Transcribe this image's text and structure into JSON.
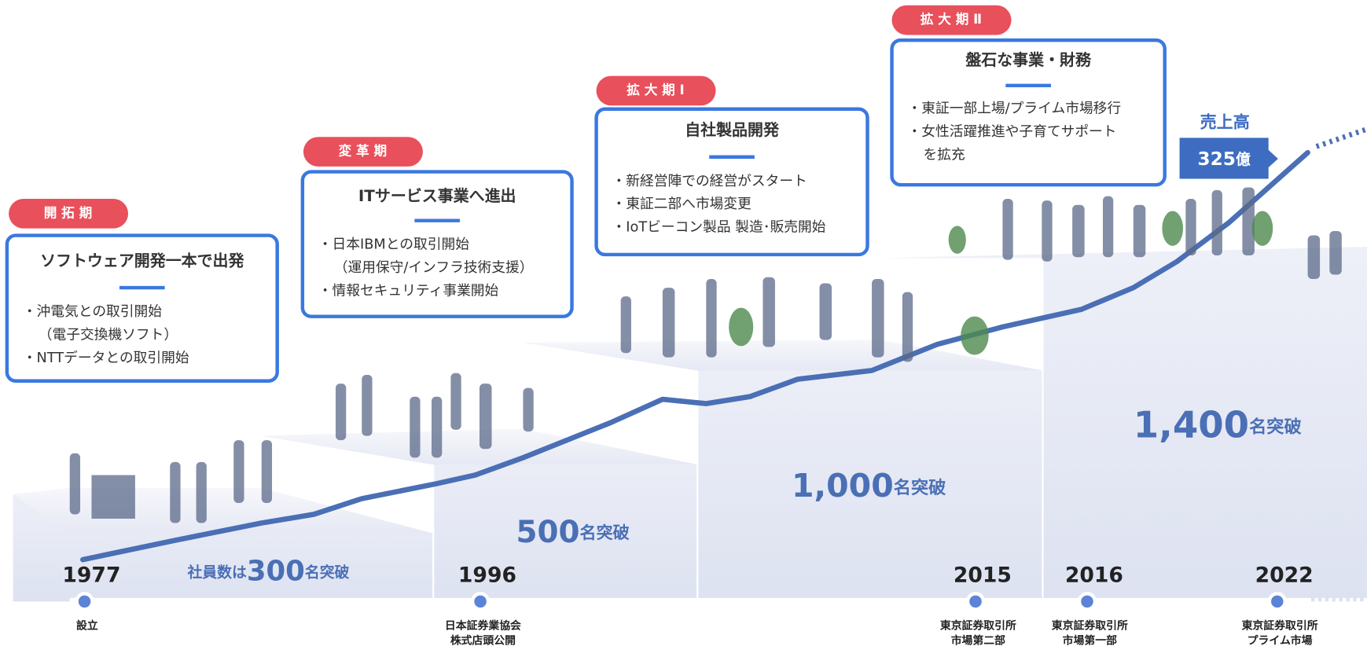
{
  "phases": [
    {
      "label": "開 拓 期",
      "title": "ソフトウェア開発一本で出発",
      "bullets": [
        "・沖電気との取引開始",
        "（電子交換機ソフト）",
        "・NTTデータとの取引開始"
      ]
    },
    {
      "label": "変 革 期",
      "title": "ITサービス事業へ進出",
      "bullets": [
        "・日本IBMとの取引開始",
        "（運用保守/インフラ技術支援）",
        "・情報セキュリティ事業開始"
      ]
    },
    {
      "label": "拡 大 期 Ⅰ",
      "title": "自社製品開発",
      "bullets": [
        "・新経営陣での経営がスタート",
        "・東証二部へ市場変更",
        "・IoTビーコン製品 製造･販売開始"
      ]
    },
    {
      "label": "拡 大 期 Ⅱ",
      "title": "盤石な事業・財務",
      "bullets": [
        "・東証一部上場/プライム市場移行",
        "・女性活躍推進や子育てサポート",
        "を拡充"
      ]
    }
  ],
  "employees": [
    {
      "prefix": "社員数は",
      "count": "300",
      "suffix": "名突破"
    },
    {
      "count": "500",
      "suffix": "名突破"
    },
    {
      "count": "1,000",
      "suffix": "名突破"
    },
    {
      "count": "1,400",
      "suffix": "名突破"
    }
  ],
  "timeline": [
    {
      "year": "1977",
      "event": [
        "設立"
      ]
    },
    {
      "year": "1996",
      "event": [
        "日本証券業協会",
        "株式店頭公開"
      ]
    },
    {
      "year": "2015",
      "event": [
        "東京証券取引所",
        "市場第二部"
      ]
    },
    {
      "year": "2016",
      "event": [
        "東京証券取引所",
        "市場第一部"
      ]
    },
    {
      "year": "2022",
      "event": [
        "東京証券取引所",
        "プライム市場"
      ]
    }
  ],
  "sales": {
    "label": "売上高",
    "amount": "325",
    "unit": "億"
  }
}
